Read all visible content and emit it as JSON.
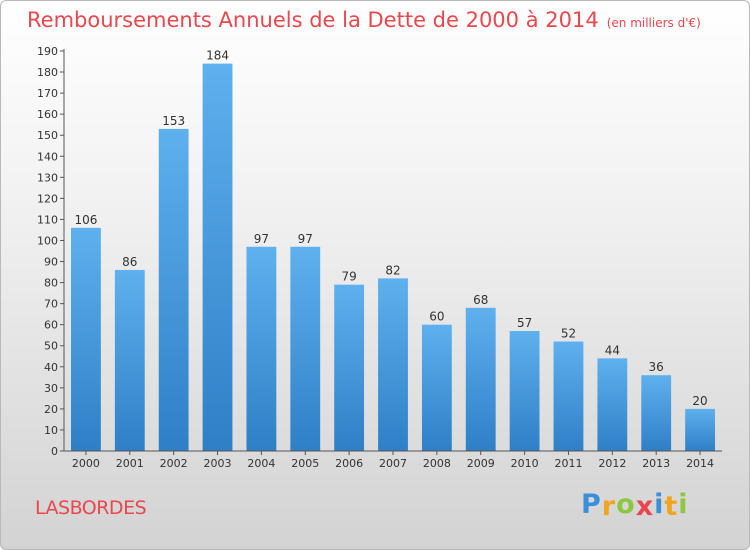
{
  "title": "Remboursements Annuels de la Dette de 2000 à 2014",
  "unit": "(en milliers d'€)",
  "place": "LASBORDES",
  "logo": {
    "letters": [
      "P",
      "r",
      "o",
      "x",
      "i",
      "t",
      "i"
    ],
    "colors": [
      "#3a8fd8",
      "#f1a51f",
      "#8ec63f",
      "#e8474d",
      "#3a8fd8",
      "#f1a51f",
      "#8ec63f"
    ]
  },
  "chart_data": {
    "type": "bar",
    "categories": [
      "2000",
      "2001",
      "2002",
      "2003",
      "2004",
      "2005",
      "2006",
      "2007",
      "2008",
      "2009",
      "2010",
      "2011",
      "2012",
      "2013",
      "2014"
    ],
    "values": [
      106,
      86,
      153,
      184,
      97,
      97,
      79,
      82,
      60,
      68,
      57,
      52,
      44,
      36,
      20
    ],
    "ylim": [
      0,
      190
    ],
    "ytick_step": 10,
    "grid": false,
    "bar_color_top": "#5fb0ee",
    "bar_color_bottom": "#2f7fc7"
  }
}
